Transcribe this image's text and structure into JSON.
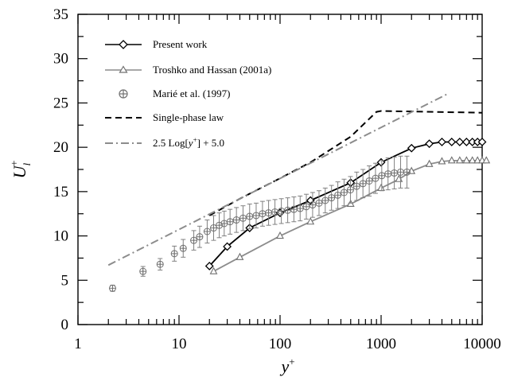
{
  "chart_data": {
    "type": "line",
    "xscale": "log",
    "xlim": [
      1,
      10000
    ],
    "ylim": [
      0,
      35
    ],
    "xticks": [
      1,
      10,
      100,
      1000,
      10000
    ],
    "xtick_labels": [
      "1",
      "10",
      "100",
      "1000",
      "10000"
    ],
    "yticks": [
      0,
      5,
      10,
      15,
      20,
      25,
      30,
      35
    ],
    "ytick_labels": [
      "0",
      "5",
      "10",
      "15",
      "20",
      "25",
      "30",
      "35"
    ],
    "xlabel": "y",
    "xlabel_sup": "+",
    "ylabel": "U",
    "ylabel_sub": "l",
    "ylabel_sup": "+",
    "grid": false,
    "legend_position": "top-left",
    "series": [
      {
        "name": "Present work",
        "style": "solid",
        "marker": "diamond",
        "color": "#000000",
        "x": [
          20,
          30,
          50,
          100,
          200,
          500,
          1000,
          2000,
          3000,
          4000,
          5000,
          6000,
          7000,
          8000,
          9000,
          10000
        ],
        "y": [
          6.6,
          8.8,
          10.9,
          12.6,
          14.0,
          16.0,
          18.3,
          19.9,
          20.4,
          20.6,
          20.6,
          20.6,
          20.6,
          20.6,
          20.6,
          20.6
        ]
      },
      {
        "name": "Troshko and Hassan (2001a)",
        "style": "solid",
        "marker": "triangle",
        "color": "#8c8c8c",
        "x": [
          22,
          40,
          100,
          200,
          500,
          1000,
          1500,
          2000,
          3000,
          4000,
          5000,
          6000,
          7000,
          8000,
          9000,
          10000,
          11000
        ],
        "y": [
          6.0,
          7.6,
          10.0,
          11.6,
          13.6,
          15.4,
          16.4,
          17.3,
          18.1,
          18.4,
          18.5,
          18.5,
          18.5,
          18.5,
          18.5,
          18.5,
          18.5
        ]
      },
      {
        "name": "Marié et al. (1997)",
        "style": "none",
        "marker": "circle-cross",
        "color": "#707070",
        "x": [
          2.2,
          4.4,
          6.5,
          9,
          11,
          14,
          16,
          19,
          22,
          25,
          28,
          32,
          37,
          43,
          50,
          58,
          67,
          77,
          89,
          103,
          119,
          137,
          158,
          182,
          210,
          243,
          280,
          323,
          373,
          430,
          497,
          573,
          661,
          763,
          880,
          1015,
          1171,
          1351,
          1559,
          1800
        ],
        "y": [
          4.1,
          6.0,
          6.8,
          8.0,
          8.6,
          9.5,
          9.9,
          10.5,
          10.9,
          11.2,
          11.4,
          11.6,
          11.8,
          12.0,
          12.2,
          12.3,
          12.5,
          12.6,
          12.7,
          12.8,
          12.9,
          13.0,
          13.1,
          13.3,
          13.5,
          13.7,
          14.0,
          14.3,
          14.6,
          14.9,
          15.2,
          15.6,
          15.9,
          16.2,
          16.5,
          16.8,
          17.0,
          17.1,
          17.2,
          17.2
        ],
        "err": [
          0.35,
          0.55,
          0.65,
          0.85,
          1.0,
          1.1,
          1.2,
          1.3,
          1.4,
          1.4,
          1.4,
          1.4,
          1.4,
          1.4,
          1.4,
          1.4,
          1.4,
          1.4,
          1.4,
          1.4,
          1.4,
          1.4,
          1.4,
          1.4,
          1.4,
          1.4,
          1.4,
          1.4,
          1.5,
          1.5,
          1.5,
          1.6,
          1.6,
          1.7,
          1.7,
          1.7,
          1.8,
          1.8,
          1.8,
          1.8
        ]
      },
      {
        "name": "Single-phase law",
        "style": "dashed",
        "marker": "none",
        "color": "#000000",
        "x": [
          20,
          40,
          100,
          200,
          500,
          900,
          1000,
          10000
        ],
        "y": [
          12.3,
          14.2,
          16.5,
          18.3,
          21.2,
          24.0,
          24.1,
          23.9
        ]
      },
      {
        "name": "2.5 Log[y+] + 5.0",
        "style": "dashdot",
        "marker": "none",
        "color": "#8c8c8c",
        "x": [
          2,
          4500
        ],
        "y": [
          6.7,
          26.0
        ]
      }
    ]
  },
  "legend": {
    "entries": [
      "Present work",
      "Troshko and Hassan (2001a)",
      "Marié et al. (1997)",
      "Single-phase law",
      "2.5 Log[y+] + 5.0"
    ],
    "log_formula": {
      "prefix": "2.5 Log[",
      "var": "y",
      "sup": "+",
      "suffix": "] + 5.0"
    }
  }
}
